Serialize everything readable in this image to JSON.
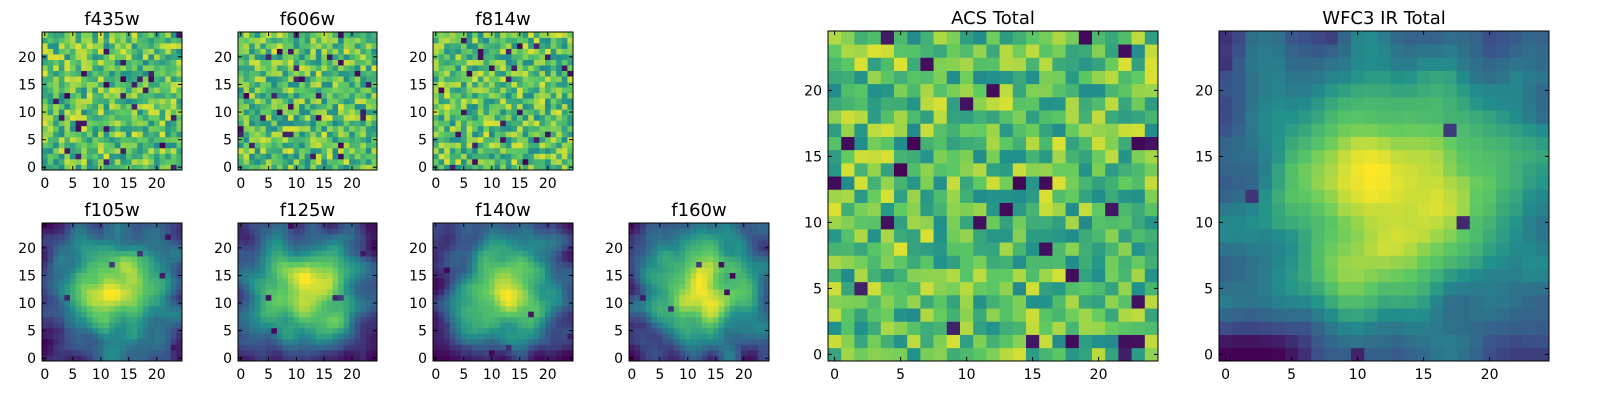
{
  "colormap": [
    "#440154",
    "#3b528b",
    "#21918c",
    "#5ec962",
    "#fde725"
  ],
  "frame_color": "#000000",
  "chart_data": [
    {
      "type": "heatmap",
      "title": "f435w",
      "size": 25,
      "texture": "noise",
      "xticks": [
        0,
        5,
        10,
        15,
        20
      ],
      "yticks": [
        0,
        5,
        10,
        15,
        20
      ],
      "value_range": [
        0,
        1
      ],
      "seed": 11
    },
    {
      "type": "heatmap",
      "title": "f606w",
      "size": 25,
      "texture": "noise",
      "xticks": [
        0,
        5,
        10,
        15,
        20
      ],
      "yticks": [
        0,
        5,
        10,
        15,
        20
      ],
      "value_range": [
        0,
        1
      ],
      "seed": 23
    },
    {
      "type": "heatmap",
      "title": "f814w",
      "size": 25,
      "texture": "noise",
      "xticks": [
        0,
        5,
        10,
        15,
        20
      ],
      "yticks": [
        0,
        5,
        10,
        15,
        20
      ],
      "value_range": [
        0,
        1
      ],
      "seed": 37
    },
    {
      "type": "heatmap",
      "title": "f105w",
      "size": 25,
      "texture": "smooth",
      "xticks": [
        0,
        5,
        10,
        15,
        20
      ],
      "yticks": [
        0,
        5,
        10,
        15,
        20
      ],
      "value_range": [
        0,
        1
      ],
      "seed": 41
    },
    {
      "type": "heatmap",
      "title": "f125w",
      "size": 25,
      "texture": "smooth",
      "xticks": [
        0,
        5,
        10,
        15,
        20
      ],
      "yticks": [
        0,
        5,
        10,
        15,
        20
      ],
      "value_range": [
        0,
        1
      ],
      "seed": 53
    },
    {
      "type": "heatmap",
      "title": "f140w",
      "size": 25,
      "texture": "smooth",
      "xticks": [
        0,
        5,
        10,
        15,
        20
      ],
      "yticks": [
        0,
        5,
        10,
        15,
        20
      ],
      "value_range": [
        0,
        1
      ],
      "seed": 67
    },
    {
      "type": "heatmap",
      "title": "f160w",
      "size": 25,
      "texture": "smooth",
      "xticks": [
        0,
        5,
        10,
        15,
        20
      ],
      "yticks": [
        0,
        5,
        10,
        15,
        20
      ],
      "value_range": [
        0,
        1
      ],
      "seed": 79
    },
    {
      "type": "heatmap",
      "title": "ACS Total",
      "size": 25,
      "texture": "noise",
      "xticks": [
        0,
        5,
        10,
        15,
        20
      ],
      "yticks": [
        0,
        5,
        10,
        15,
        20
      ],
      "value_range": [
        0,
        1
      ],
      "seed": 83
    },
    {
      "type": "heatmap",
      "title": "WFC3 IR Total",
      "size": 25,
      "texture": "smooth",
      "xticks": [
        0,
        5,
        10,
        15,
        20
      ],
      "yticks": [
        0,
        5,
        10,
        15,
        20
      ],
      "value_range": [
        0,
        1
      ],
      "seed": 97
    }
  ]
}
